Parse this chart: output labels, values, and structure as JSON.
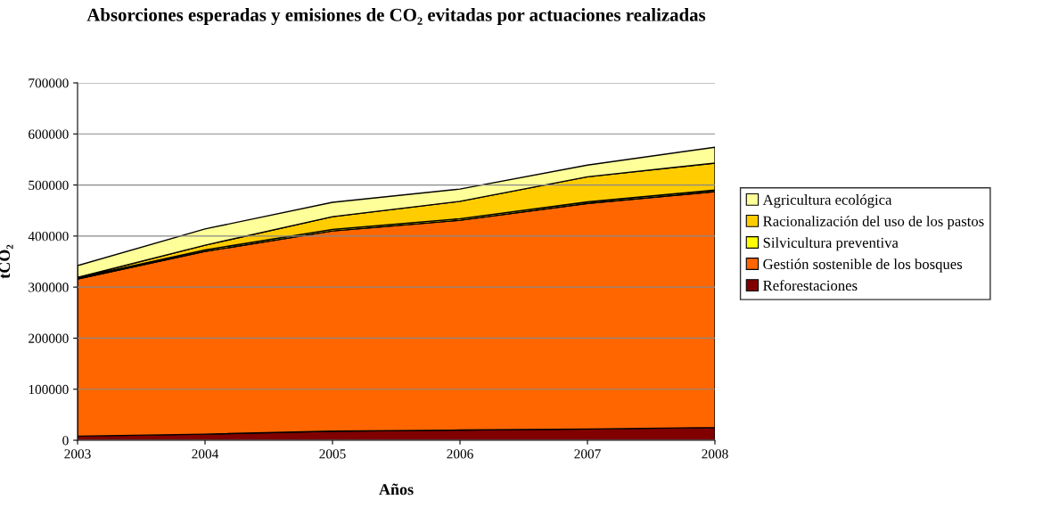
{
  "chart_data": {
    "type": "area",
    "stacked": true,
    "title": "Absorciones esperadas y emisiones de CO₂ evitadas por actuaciones realizadas",
    "xlabel": "Años",
    "ylabel": "tCO₂",
    "x": [
      2003,
      2004,
      2005,
      2006,
      2007,
      2008
    ],
    "series": [
      {
        "name": "Reforestaciones",
        "color": "#800000",
        "values": [
          8000,
          12000,
          18000,
          20000,
          22000,
          25000
        ]
      },
      {
        "name": "Gestión sostenible de los bosques",
        "color": "#ff6600",
        "values": [
          308000,
          358000,
          392000,
          411000,
          442000,
          462000
        ]
      },
      {
        "name": "Silvicultura preventiva",
        "color": "#ffff00",
        "values": [
          2000,
          3000,
          3000,
          3000,
          3000,
          3000
        ]
      },
      {
        "name": "Racionalización del uso de los pastos",
        "color": "#ffcc00",
        "values": [
          1000,
          9000,
          25000,
          34000,
          49000,
          53000
        ]
      },
      {
        "name": "Agricultura ecológica",
        "color": "#ffff99",
        "values": [
          23000,
          32000,
          28000,
          24000,
          23000,
          31000
        ]
      }
    ],
    "xlim": [
      2003,
      2008
    ],
    "xticks": [
      2003,
      2004,
      2005,
      2006,
      2007,
      2008
    ],
    "ylim": [
      0,
      700000
    ],
    "yticks": [
      0,
      100000,
      200000,
      300000,
      400000,
      500000,
      600000,
      700000
    ],
    "grid": "y",
    "legend": "right"
  }
}
